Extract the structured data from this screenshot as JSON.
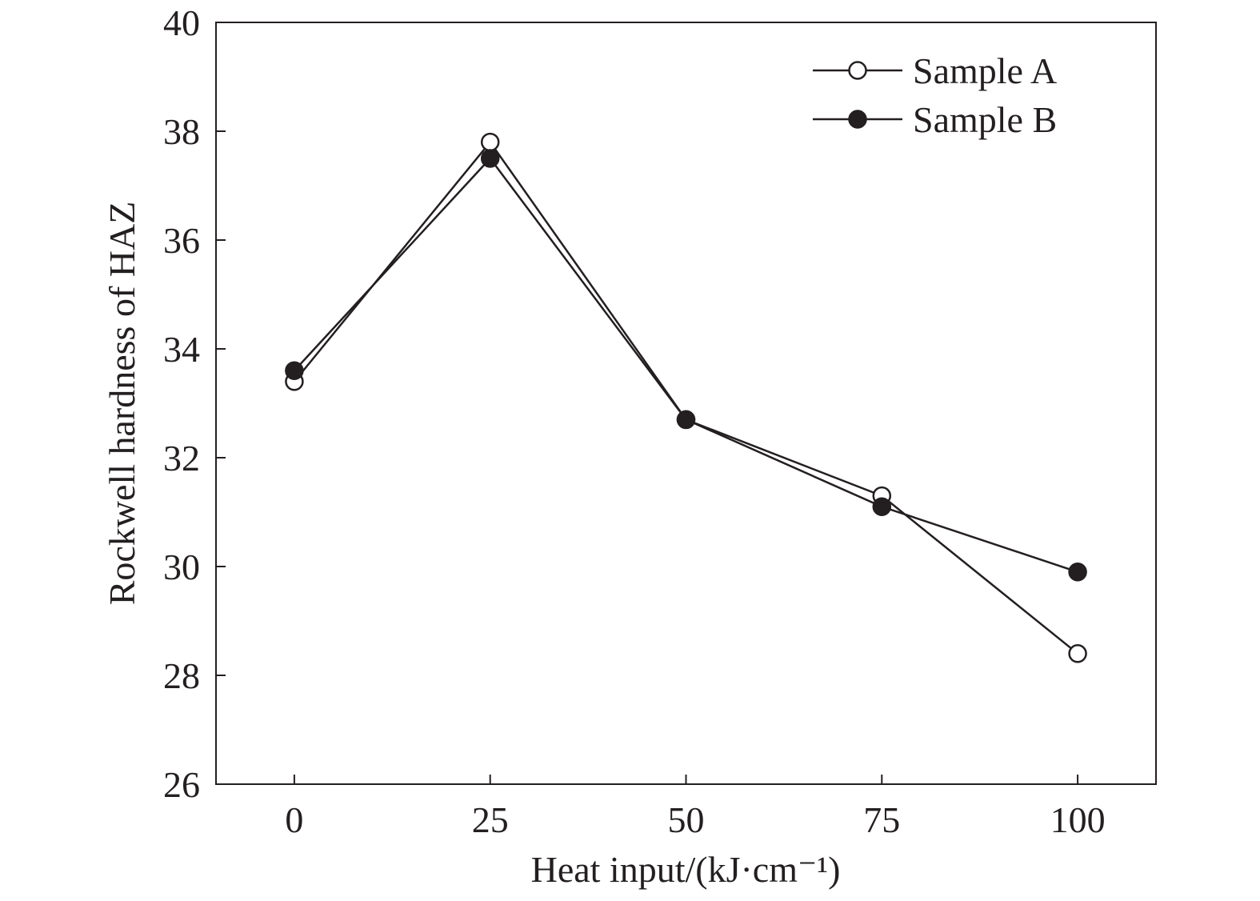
{
  "chart_data": {
    "type": "line",
    "xlabel": "Heat input/(kJ·cm⁻¹)",
    "ylabel": "Rockwell hardness of HAZ",
    "x": [
      0,
      25,
      50,
      75,
      100
    ],
    "xlim": [
      -10,
      110
    ],
    "ylim": [
      26,
      40
    ],
    "xticks": [
      "0",
      "25",
      "50",
      "75",
      "100"
    ],
    "yticks": [
      "26",
      "28",
      "30",
      "32",
      "34",
      "36",
      "38",
      "40"
    ],
    "grid": false,
    "legend_position": "top-right",
    "series": [
      {
        "name": "Sample A",
        "marker": "open-circle",
        "values": [
          33.4,
          37.8,
          32.7,
          31.3,
          28.4
        ]
      },
      {
        "name": "Sample B",
        "marker": "filled-circle",
        "values": [
          33.6,
          37.5,
          32.7,
          31.1,
          29.9
        ]
      }
    ],
    "colors": {
      "line": "#231f20",
      "axis": "#231f20",
      "background": "#ffffff"
    }
  }
}
